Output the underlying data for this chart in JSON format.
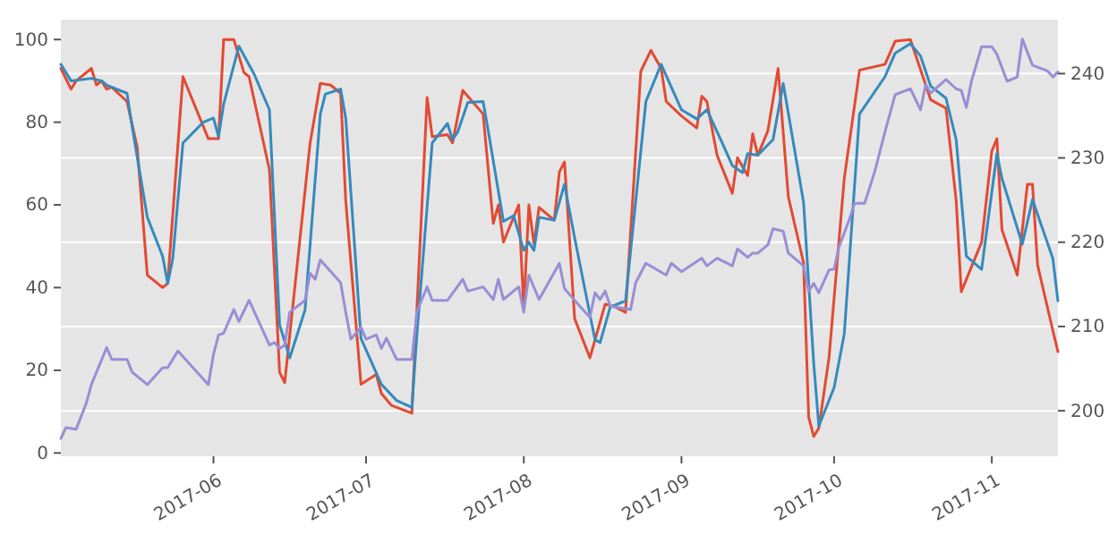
{
  "chart_data": {
    "type": "line",
    "xlim": [
      "2017-05-02",
      "2017-11-14"
    ],
    "xticks": [
      "2017-06",
      "2017-07",
      "2017-08",
      "2017-09",
      "2017-10",
      "2017-11"
    ],
    "ylim": [
      -0.8,
      104.8
    ],
    "yticks": [
      0,
      20,
      40,
      60,
      80,
      100
    ],
    "y2lim": [
      194.6,
      246.4
    ],
    "y2ticks": [
      200,
      210,
      220,
      230,
      240
    ],
    "grid": "y",
    "series": [
      {
        "color": "#e24a33",
        "x": [
          "2017-05-02",
          "2017-05-04",
          "2017-05-05",
          "2017-05-08",
          "2017-05-09",
          "2017-05-10",
          "2017-05-11",
          "2017-05-12",
          "2017-05-15",
          "2017-05-17",
          "2017-05-19",
          "2017-05-22",
          "2017-05-23",
          "2017-05-26",
          "2017-05-31",
          "2017-06-02",
          "2017-06-03",
          "2017-06-05",
          "2017-06-07",
          "2017-06-08",
          "2017-06-12",
          "2017-06-14",
          "2017-06-15",
          "2017-06-20",
          "2017-06-22",
          "2017-06-24",
          "2017-06-26",
          "2017-06-27",
          "2017-06-30",
          "2017-07-03",
          "2017-07-04",
          "2017-07-06",
          "2017-07-10",
          "2017-07-13",
          "2017-07-14",
          "2017-07-17",
          "2017-07-18",
          "2017-07-20",
          "2017-07-24",
          "2017-07-26",
          "2017-07-27",
          "2017-07-28",
          "2017-07-31",
          "2017-08-01",
          "2017-08-02",
          "2017-08-03",
          "2017-08-04",
          "2017-08-07",
          "2017-08-08",
          "2017-08-09",
          "2017-08-11",
          "2017-08-14",
          "2017-08-17",
          "2017-08-19",
          "2017-08-21",
          "2017-08-24",
          "2017-08-26",
          "2017-08-28",
          "2017-08-29",
          "2017-09-01",
          "2017-09-04",
          "2017-09-05",
          "2017-09-06",
          "2017-09-08",
          "2017-09-11",
          "2017-09-12",
          "2017-09-14",
          "2017-09-15",
          "2017-09-16",
          "2017-09-18",
          "2017-09-20",
          "2017-09-22",
          "2017-09-25",
          "2017-09-26",
          "2017-09-27",
          "2017-09-28",
          "2017-09-30",
          "2017-10-03",
          "2017-10-06",
          "2017-10-11",
          "2017-10-13",
          "2017-10-16",
          "2017-10-20",
          "2017-10-23",
          "2017-10-25",
          "2017-10-26",
          "2017-10-30",
          "2017-11-01",
          "2017-11-02",
          "2017-11-03",
          "2017-11-06",
          "2017-11-08",
          "2017-11-09",
          "2017-11-10",
          "2017-11-13",
          "2017-11-14"
        ],
        "values": [
          93,
          88,
          90,
          93,
          89,
          90,
          88,
          88.5,
          85,
          74,
          43,
          40,
          41,
          91,
          76,
          76,
          100,
          100,
          92,
          91,
          68.5,
          19.5,
          17,
          75,
          89.4,
          89,
          87,
          61,
          16.6,
          19,
          14.4,
          11.5,
          9.6,
          86,
          76.5,
          77,
          75,
          87.7,
          82,
          55.5,
          60,
          51,
          60,
          35,
          60,
          50.5,
          59.4,
          56.3,
          68,
          70.4,
          32.5,
          23,
          36,
          35.3,
          34,
          92.3,
          97.4,
          93,
          85,
          81.5,
          78.6,
          86.3,
          85,
          72,
          62.8,
          71.4,
          67.1,
          77.2,
          72,
          78,
          93,
          62,
          46,
          8.7,
          4,
          6,
          23,
          66.4,
          92.6,
          94,
          99.6,
          100,
          85.4,
          83.4,
          61,
          39,
          51,
          73,
          76,
          54,
          43,
          65,
          65,
          45.5,
          29.6,
          24.5
        ]
      },
      {
        "color": "#348abd",
        "x": [
          "2017-05-02",
          "2017-05-04",
          "2017-05-08",
          "2017-05-10",
          "2017-05-11",
          "2017-05-15",
          "2017-05-16",
          "2017-05-19",
          "2017-05-22",
          "2017-05-23",
          "2017-05-24",
          "2017-05-26",
          "2017-05-30",
          "2017-06-01",
          "2017-06-02",
          "2017-06-03",
          "2017-06-06",
          "2017-06-09",
          "2017-06-12",
          "2017-06-14",
          "2017-06-16",
          "2017-06-19",
          "2017-06-22",
          "2017-06-23",
          "2017-06-26",
          "2017-06-27",
          "2017-06-30",
          "2017-07-04",
          "2017-07-07",
          "2017-07-10",
          "2017-07-11",
          "2017-07-14",
          "2017-07-17",
          "2017-07-18",
          "2017-07-19",
          "2017-07-21",
          "2017-07-24",
          "2017-07-25",
          "2017-07-28",
          "2017-07-30",
          "2017-08-01",
          "2017-08-02",
          "2017-08-03",
          "2017-08-04",
          "2017-08-07",
          "2017-08-09",
          "2017-08-11",
          "2017-08-15",
          "2017-08-16",
          "2017-08-18",
          "2017-08-21",
          "2017-08-25",
          "2017-08-28",
          "2017-09-01",
          "2017-09-04",
          "2017-09-06",
          "2017-09-09",
          "2017-09-11",
          "2017-09-13",
          "2017-09-14",
          "2017-09-16",
          "2017-09-19",
          "2017-09-21",
          "2017-09-25",
          "2017-09-27",
          "2017-09-28",
          "2017-10-01",
          "2017-10-03",
          "2017-10-06",
          "2017-10-11",
          "2017-10-13",
          "2017-10-16",
          "2017-10-18",
          "2017-10-20",
          "2017-10-23",
          "2017-10-25",
          "2017-10-27",
          "2017-10-30",
          "2017-11-02",
          "2017-11-03",
          "2017-11-07",
          "2017-11-09",
          "2017-11-13",
          "2017-11-14"
        ],
        "values": [
          94,
          90,
          90.6,
          90,
          89,
          87,
          79,
          57,
          47.6,
          41,
          47,
          75,
          80,
          81,
          76.5,
          84.4,
          98.4,
          91.6,
          83,
          31,
          23,
          34.6,
          82,
          86.8,
          88,
          81,
          27.7,
          16.6,
          12.7,
          11,
          28.8,
          75,
          79.7,
          75.8,
          77.6,
          84.8,
          85,
          78,
          56,
          57.4,
          49,
          51,
          49,
          57,
          56.3,
          65,
          52,
          27.4,
          26.7,
          35.3,
          36.8,
          85,
          94,
          83,
          80.8,
          83,
          75,
          69.5,
          67.8,
          72.4,
          72,
          75.8,
          89.4,
          60.6,
          21.6,
          6.5,
          15.8,
          28.8,
          82,
          91,
          96.7,
          99,
          96,
          88.7,
          85.8,
          75.8,
          47.6,
          44.4,
          72.4,
          66.4,
          50.5,
          61.3,
          47,
          36.8
        ]
      },
      {
        "color": "#988ed5",
        "axis": "y2",
        "x": [
          "2017-05-02",
          "2017-05-03",
          "2017-05-05",
          "2017-05-07",
          "2017-05-08",
          "2017-05-11",
          "2017-05-12",
          "2017-05-15",
          "2017-05-16",
          "2017-05-19",
          "2017-05-22",
          "2017-05-23",
          "2017-05-25",
          "2017-05-31",
          "2017-06-01",
          "2017-06-02",
          "2017-06-03",
          "2017-06-05",
          "2017-06-06",
          "2017-06-08",
          "2017-06-12",
          "2017-06-13",
          "2017-06-14",
          "2017-06-15",
          "2017-06-16",
          "2017-06-19",
          "2017-06-20",
          "2017-06-21",
          "2017-06-22",
          "2017-06-26",
          "2017-06-27",
          "2017-06-28",
          "2017-06-30",
          "2017-07-01",
          "2017-07-03",
          "2017-07-04",
          "2017-07-05",
          "2017-07-07",
          "2017-07-10",
          "2017-07-11",
          "2017-07-13",
          "2017-07-14",
          "2017-07-17",
          "2017-07-20",
          "2017-07-21",
          "2017-07-24",
          "2017-07-26",
          "2017-07-27",
          "2017-07-28",
          "2017-07-31",
          "2017-08-01",
          "2017-08-02",
          "2017-08-04",
          "2017-08-08",
          "2017-08-09",
          "2017-08-10",
          "2017-08-12",
          "2017-08-14",
          "2017-08-15",
          "2017-08-16",
          "2017-08-17",
          "2017-08-18",
          "2017-08-22",
          "2017-08-23",
          "2017-08-25",
          "2017-08-29",
          "2017-08-30",
          "2017-09-01",
          "2017-09-05",
          "2017-09-06",
          "2017-09-08",
          "2017-09-11",
          "2017-09-12",
          "2017-09-14",
          "2017-09-15",
          "2017-09-16",
          "2017-09-18",
          "2017-09-19",
          "2017-09-21",
          "2017-09-22",
          "2017-09-25",
          "2017-09-26",
          "2017-09-27",
          "2017-09-28",
          "2017-09-30",
          "2017-10-01",
          "2017-10-02",
          "2017-10-04",
          "2017-10-05",
          "2017-10-07",
          "2017-10-09",
          "2017-10-11",
          "2017-10-13",
          "2017-10-16",
          "2017-10-18",
          "2017-10-19",
          "2017-10-20",
          "2017-10-23",
          "2017-10-25",
          "2017-10-26",
          "2017-10-27",
          "2017-10-28",
          "2017-10-30",
          "2017-11-01",
          "2017-11-02",
          "2017-11-04",
          "2017-11-06",
          "2017-11-07",
          "2017-11-09",
          "2017-11-12",
          "2017-11-13",
          "2017-11-14"
        ],
        "values": [
          196.7,
          198,
          197.8,
          200.9,
          203.1,
          207.5,
          206.1,
          206.1,
          204.6,
          203.1,
          205.1,
          205.1,
          207.1,
          203.1,
          206.7,
          209,
          209.2,
          212,
          210.6,
          213.1,
          207.8,
          208.1,
          207.4,
          207.8,
          211.7,
          213.1,
          216.3,
          215.6,
          217.9,
          215.2,
          211.7,
          208.5,
          209.9,
          208.5,
          209,
          207.4,
          208.6,
          206.1,
          206.1,
          211.8,
          214.7,
          213.1,
          213.1,
          215.6,
          214.2,
          214.7,
          213.2,
          215.6,
          213.2,
          214.7,
          211.7,
          216.1,
          213.2,
          217.5,
          214.5,
          213.8,
          212.4,
          211.1,
          214,
          213.2,
          214.2,
          212.4,
          212,
          215.2,
          217.5,
          216.1,
          217.5,
          216.5,
          218.1,
          217.2,
          218.1,
          217.2,
          219.2,
          218.2,
          218.7,
          218.7,
          219.7,
          221.6,
          221.3,
          218.7,
          217.2,
          214.2,
          215.1,
          214,
          216.7,
          216.8,
          219.5,
          222.7,
          224.6,
          224.6,
          228.4,
          233.1,
          237.5,
          238.2,
          235.7,
          238.7,
          237.7,
          239.3,
          238.2,
          238,
          236,
          239.1,
          243.2,
          243.2,
          242.3,
          239.1,
          239.6,
          244.1,
          241,
          240.3,
          239.6,
          240.2
        ]
      }
    ]
  }
}
